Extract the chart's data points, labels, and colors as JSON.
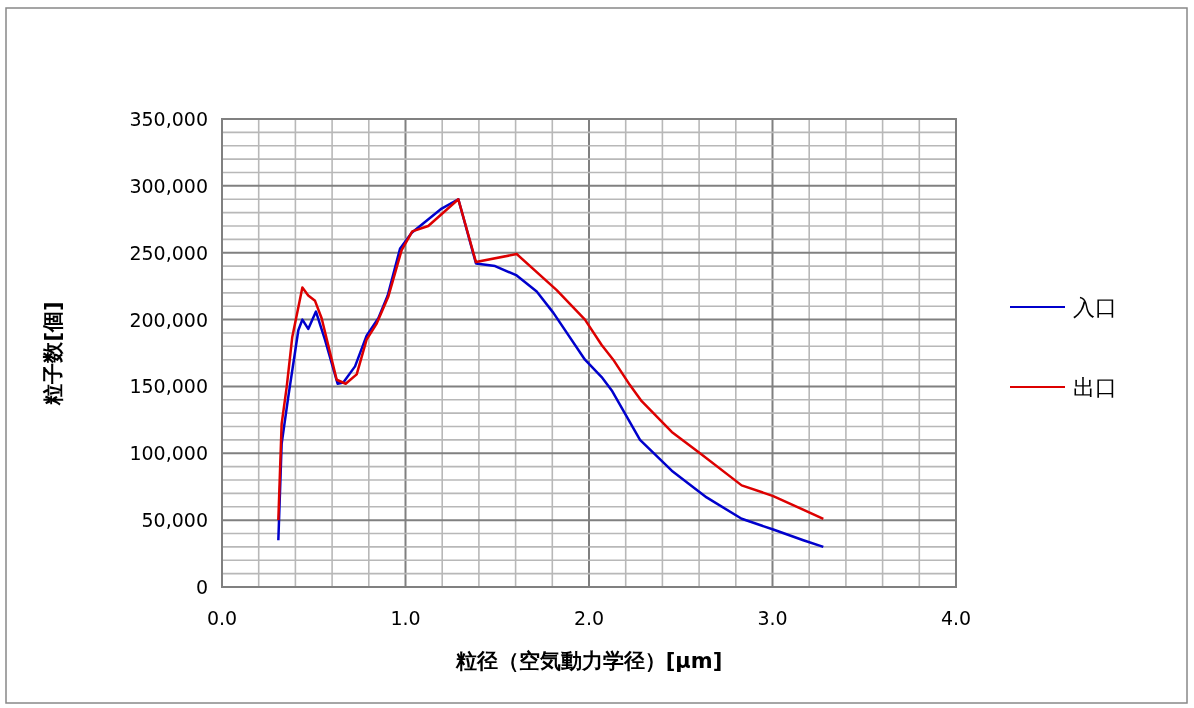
{
  "chart_data": {
    "type": "line",
    "xlabel": "粒径（空気動力学径）[μm]",
    "ylabel": "粒子数[個]",
    "xlim": [
      0,
      4
    ],
    "ylim": [
      0,
      350000
    ],
    "xticks": [
      {
        "value": 0,
        "label": "0.0"
      },
      {
        "value": 0.2,
        "label": null
      },
      {
        "value": 0.4,
        "label": null
      },
      {
        "value": 0.6,
        "label": null
      },
      {
        "value": 0.8,
        "label": null
      },
      {
        "value": 1,
        "label": "1.0"
      },
      {
        "value": 1.2,
        "label": null
      },
      {
        "value": 1.4,
        "label": null
      },
      {
        "value": 1.6,
        "label": null
      },
      {
        "value": 1.8,
        "label": null
      },
      {
        "value": 2,
        "label": "2.0"
      },
      {
        "value": 2.2,
        "label": null
      },
      {
        "value": 2.4,
        "label": null
      },
      {
        "value": 2.6,
        "label": null
      },
      {
        "value": 2.8,
        "label": null
      },
      {
        "value": 3,
        "label": "3.0"
      },
      {
        "value": 3.2,
        "label": null
      },
      {
        "value": 3.4,
        "label": null
      },
      {
        "value": 3.6,
        "label": null
      },
      {
        "value": 3.8,
        "label": null
      },
      {
        "value": 4,
        "label": "4.0"
      }
    ],
    "yticks": [
      0,
      {
        "value": 10000,
        "label": null
      },
      {
        "value": 20000,
        "label": null
      },
      {
        "value": 30000,
        "label": null
      },
      {
        "value": 40000,
        "label": null
      },
      {
        "value": 50000,
        "label": "50,000"
      },
      {
        "value": 60000,
        "label": null
      },
      {
        "value": 70000,
        "label": null
      },
      {
        "value": 80000,
        "label": null
      },
      {
        "value": 90000,
        "label": null
      },
      {
        "value": 100000,
        "label": "100,000"
      },
      {
        "value": 110000,
        "label": null
      },
      {
        "value": 120000,
        "label": null
      },
      {
        "value": 130000,
        "label": null
      },
      {
        "value": 140000,
        "label": null
      },
      {
        "value": 150000,
        "label": "150,000"
      },
      {
        "value": 160000,
        "label": null
      },
      {
        "value": 170000,
        "label": null
      },
      {
        "value": 180000,
        "label": null
      },
      {
        "value": 190000,
        "label": null
      },
      {
        "value": 200000,
        "label": "200,000"
      },
      {
        "value": 210000,
        "label": null
      },
      {
        "value": 220000,
        "label": null
      },
      {
        "value": 230000,
        "label": null
      },
      {
        "value": 240000,
        "label": null
      },
      {
        "value": 250000,
        "label": "250,000"
      },
      {
        "value": 260000,
        "label": null
      },
      {
        "value": 270000,
        "label": null
      },
      {
        "value": 280000,
        "label": null
      },
      {
        "value": 290000,
        "label": null
      },
      {
        "value": 300000,
        "label": "300,000"
      },
      {
        "value": 310000,
        "label": null
      },
      {
        "value": 320000,
        "label": null
      },
      {
        "value": 330000,
        "label": null
      },
      {
        "value": 340000,
        "label": null
      },
      {
        "value": 350000,
        "label": "350,000"
      }
    ],
    "grid": true,
    "legend": "right",
    "marker": "none",
    "line_style": "solid",
    "series": [
      {
        "name": "入口",
        "color": "#0000cc",
        "x": [
          0.307,
          0.325,
          0.361,
          0.416,
          0.438,
          0.47,
          0.512,
          0.561,
          0.63,
          0.661,
          0.725,
          0.788,
          0.852,
          0.903,
          0.97,
          1.034,
          1.197,
          1.288,
          1.384,
          1.488,
          1.606,
          1.715,
          1.806,
          1.978,
          2.069,
          2.124,
          2.278,
          2.451,
          2.641,
          2.832,
          3.004,
          3.168,
          3.277
        ],
        "values": [
          35000,
          107000,
          142000,
          192000,
          200000,
          193000,
          206000,
          185000,
          152000,
          153000,
          165000,
          188000,
          201000,
          218000,
          253000,
          265000,
          283000,
          290000,
          242000,
          240000,
          233000,
          221000,
          205000,
          170000,
          157000,
          147000,
          110000,
          87000,
          67000,
          51000,
          43000,
          35000,
          30000
        ]
      },
      {
        "name": "出口",
        "color": "#dd0000",
        "x": [
          0.307,
          0.325,
          0.353,
          0.383,
          0.438,
          0.47,
          0.507,
          0.543,
          0.625,
          0.674,
          0.734,
          0.788,
          0.843,
          0.906,
          0.979,
          1.037,
          1.124,
          1.288,
          1.384,
          1.606,
          1.824,
          1.978,
          2.069,
          2.132,
          2.223,
          2.287,
          2.451,
          2.605,
          2.832,
          3.004,
          3.277
        ],
        "values": [
          50000,
          122000,
          150000,
          187000,
          224000,
          218000,
          214000,
          201000,
          155000,
          152000,
          159000,
          185000,
          197000,
          217000,
          252000,
          266000,
          270000,
          290000,
          243000,
          249000,
          222000,
          200000,
          181000,
          170000,
          151000,
          139000,
          116000,
          100000,
          76000,
          68000,
          51000
        ]
      }
    ]
  }
}
